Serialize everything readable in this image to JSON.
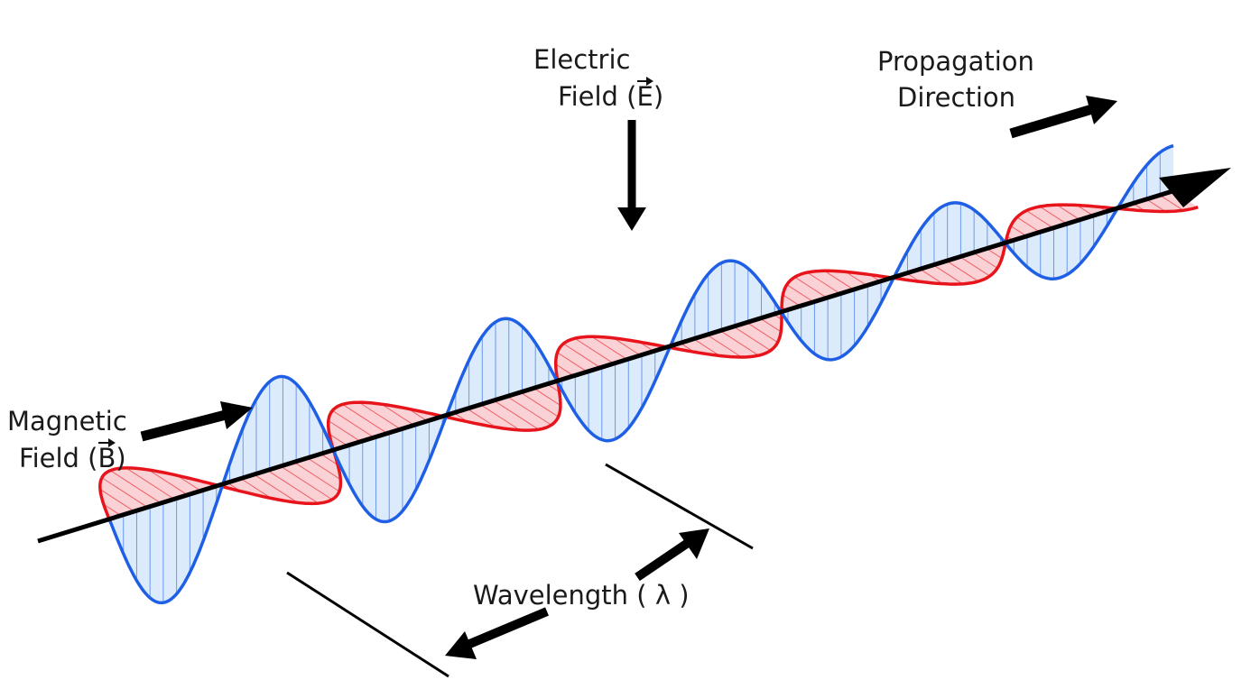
{
  "labels": {
    "electric_line1": "Electric",
    "electric_line2": "Field",
    "electric_symbol": "E",
    "propagation_line1": "Propagation",
    "propagation_line2": "Direction",
    "magnetic_line1": "Magnetic",
    "magnetic_line2": "Field",
    "magnetic_symbol": "B",
    "wavelength": "Wavelength",
    "lambda": "λ"
  },
  "colors": {
    "electric_stroke": "#1f5fe6",
    "electric_fill": "#cfe4fb",
    "magnetic_stroke": "#e8141c",
    "magnetic_fill": "#f8c2c6",
    "axis": "#000000"
  }
}
